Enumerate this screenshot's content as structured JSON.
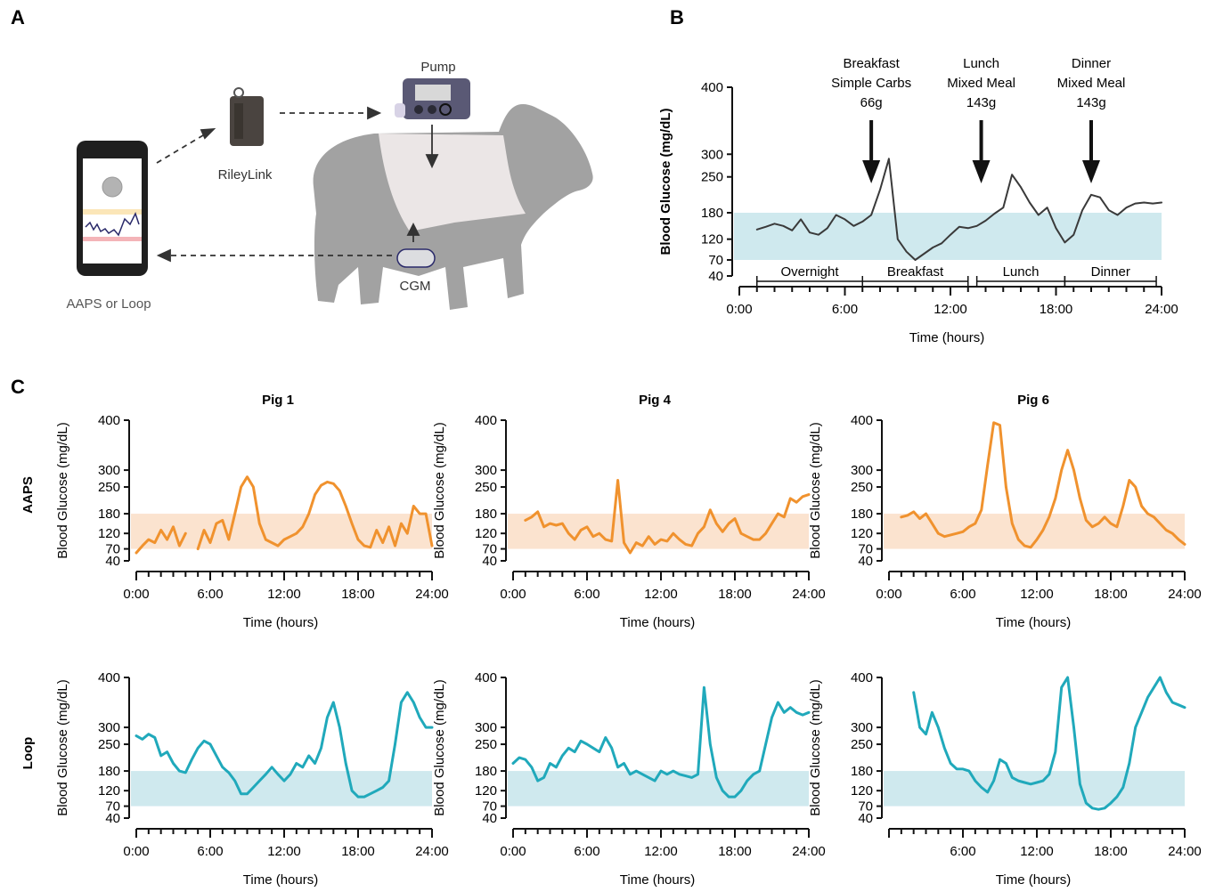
{
  "panels": {
    "a": {
      "letter": "A",
      "pump_label": "Pump",
      "rileylink_label": "RileyLink",
      "cgm_label": "CGM",
      "phone_label": "AAPS or Loop"
    },
    "b": {
      "letter": "B",
      "ylabel": "Blood Glucose (mg/dL)",
      "xlabel": "Time (hours)",
      "meals": [
        {
          "lines": [
            "Breakfast",
            "Simple Carbs",
            "66g"
          ],
          "time_h": 7.5
        },
        {
          "lines": [
            "Lunch",
            "Mixed Meal",
            "143g"
          ],
          "time_h": 13.75
        },
        {
          "lines": [
            "Dinner",
            "Mixed Meal",
            "143g"
          ],
          "time_h": 20
        }
      ],
      "periods": [
        {
          "label": "Overnight",
          "start_h": 1,
          "end_h": 7
        },
        {
          "label": "Breakfast",
          "start_h": 7,
          "end_h": 13
        },
        {
          "label": "Lunch",
          "start_h": 13.5,
          "end_h": 18.5
        },
        {
          "label": "Dinner",
          "start_h": 18.5,
          "end_h": 23.7
        }
      ]
    },
    "c": {
      "letter": "C",
      "col_titles": [
        "Pig 1",
        "Pig 4",
        "Pig 6"
      ],
      "row_titles": [
        "AAPS",
        "Loop"
      ],
      "ylabel": "Blood Glucose (mg/dL)",
      "xlabel": "Time (hours)"
    }
  },
  "colors": {
    "aaps_line": "#f0922e",
    "aaps_band": "#fbe3cf",
    "loop_line": "#20a9bb",
    "loop_band": "#cfe9ee",
    "b_line": "#3a3a3a",
    "b_band": "#cfe9ee"
  },
  "chart_data": [
    {
      "id": "B",
      "type": "line",
      "xlabel": "Time (hours)",
      "ylabel": "Blood Glucose (mg/dL)",
      "xlim": [
        0,
        24
      ],
      "ylim": [
        40,
        400
      ],
      "xticks": [
        "0:00",
        "6:00",
        "12:00",
        "18:00",
        "24:00"
      ],
      "yticks": [
        40,
        70,
        120,
        180,
        250,
        300,
        400
      ],
      "target_range": [
        70,
        180
      ],
      "x": [
        1,
        1.5,
        2,
        2.5,
        3,
        3.5,
        4,
        4.5,
        5,
        5.5,
        6,
        6.5,
        7,
        7.5,
        8,
        8.5,
        9,
        9.5,
        10,
        10.5,
        11,
        11.5,
        12,
        12.5,
        13,
        13.5,
        14,
        14.5,
        15,
        15.5,
        16,
        16.5,
        17,
        17.5,
        18,
        18.5,
        19,
        19.5,
        20,
        20.5,
        21,
        21.5,
        22,
        22.5,
        23,
        23.5,
        24
      ],
      "y": [
        142,
        148,
        155,
        150,
        140,
        165,
        135,
        130,
        145,
        175,
        165,
        150,
        160,
        175,
        225,
        290,
        120,
        90,
        70,
        85,
        100,
        110,
        130,
        148,
        145,
        150,
        162,
        178,
        190,
        255,
        230,
        200,
        175,
        190,
        145,
        112,
        130,
        185,
        215,
        210,
        185,
        175,
        190,
        198,
        200,
        198,
        200
      ]
    },
    {
      "id": "C-AAPS-Pig1",
      "type": "line",
      "xlim": [
        0,
        24
      ],
      "ylim": [
        40,
        400
      ],
      "target_range": [
        70,
        180
      ],
      "x": [
        0,
        0.5,
        1,
        1.5,
        2,
        2.5,
        3,
        3.5,
        4,
        4.5,
        5,
        5.5,
        6,
        6.5,
        7,
        7.5,
        8,
        8.5,
        9,
        9.5,
        10,
        10.5,
        11,
        11.5,
        12,
        12.5,
        13,
        13.5,
        14,
        14.5,
        15,
        15.5,
        16,
        16.5,
        17,
        17.5,
        18,
        18.5,
        19,
        19.5,
        20,
        20.5,
        21,
        21.5,
        22,
        22.5,
        23,
        23.5,
        24
      ],
      "y": [
        60,
        80,
        100,
        90,
        130,
        100,
        140,
        80,
        120,
        null,
        70,
        130,
        90,
        150,
        160,
        100,
        180,
        250,
        280,
        250,
        150,
        100,
        90,
        80,
        100,
        110,
        120,
        140,
        180,
        230,
        255,
        265,
        260,
        240,
        200,
        150,
        100,
        80,
        75,
        130,
        90,
        140,
        80,
        150,
        120,
        200,
        180,
        180,
        80
      ]
    },
    {
      "id": "C-AAPS-Pig4",
      "type": "line",
      "xlim": [
        0,
        24
      ],
      "ylim": [
        40,
        400
      ],
      "target_range": [
        70,
        180
      ],
      "x": [
        1,
        1.5,
        2,
        2.5,
        3,
        3.5,
        4,
        4.5,
        5,
        5.5,
        6,
        6.5,
        7,
        7.5,
        8,
        8.5,
        9,
        9.5,
        10,
        10.5,
        11,
        11.5,
        12,
        12.5,
        13,
        13.5,
        14,
        14.5,
        15,
        15.5,
        16,
        16.5,
        17,
        17.5,
        18,
        18.5,
        19,
        19.5,
        20,
        20.5,
        21,
        21.5,
        22,
        22.5,
        23,
        23.5,
        24
      ],
      "y": [
        160,
        170,
        185,
        140,
        150,
        145,
        150,
        120,
        100,
        130,
        140,
        110,
        120,
        100,
        95,
        270,
        90,
        60,
        90,
        80,
        110,
        85,
        100,
        95,
        120,
        100,
        85,
        80,
        120,
        140,
        190,
        150,
        125,
        150,
        165,
        120,
        110,
        100,
        100,
        120,
        150,
        180,
        170,
        220,
        210,
        225,
        230
      ]
    },
    {
      "id": "C-AAPS-Pig6",
      "type": "line",
      "xlim": [
        0,
        24
      ],
      "ylim": [
        40,
        400
      ],
      "target_range": [
        70,
        180
      ],
      "x": [
        1,
        1.5,
        2,
        2.5,
        3,
        3.5,
        4,
        4.5,
        5,
        5.5,
        6,
        6.5,
        7,
        7.5,
        8,
        8.5,
        9,
        9.5,
        10,
        10.5,
        11,
        11.5,
        12,
        12.5,
        13,
        13.5,
        14,
        14.5,
        15,
        15.5,
        16,
        16.5,
        17,
        17.5,
        18,
        18.5,
        19,
        19.5,
        20,
        20.5,
        21,
        21.5,
        22,
        22.5,
        23,
        23.5,
        24
      ],
      "y": [
        170,
        175,
        185,
        165,
        180,
        150,
        120,
        110,
        115,
        120,
        125,
        140,
        150,
        190,
        310,
        395,
        390,
        250,
        150,
        100,
        80,
        75,
        100,
        130,
        170,
        220,
        300,
        340,
        300,
        220,
        160,
        140,
        150,
        170,
        150,
        140,
        200,
        270,
        250,
        200,
        180,
        170,
        150,
        130,
        120,
        100,
        85
      ]
    },
    {
      "id": "C-Loop-Pig1",
      "type": "line",
      "xlim": [
        0,
        24
      ],
      "ylim": [
        40,
        400
      ],
      "target_range": [
        70,
        180
      ],
      "x": [
        0,
        0.5,
        1,
        1.5,
        2,
        2.5,
        3,
        3.5,
        4,
        4.5,
        5,
        5.5,
        6,
        6.5,
        7,
        7.5,
        8,
        8.5,
        9,
        9.5,
        10,
        10.5,
        11,
        11.5,
        12,
        12.5,
        13,
        13.5,
        14,
        14.5,
        15,
        15.5,
        16,
        16.5,
        17,
        17.5,
        18,
        18.5,
        19,
        19.5,
        20,
        20.5,
        21,
        21.5,
        22,
        22.5,
        23,
        23.5,
        24
      ],
      "y": [
        275,
        265,
        280,
        270,
        220,
        230,
        200,
        180,
        175,
        210,
        240,
        260,
        250,
        220,
        190,
        175,
        150,
        110,
        110,
        130,
        150,
        170,
        190,
        170,
        150,
        170,
        200,
        190,
        220,
        200,
        240,
        320,
        350,
        300,
        200,
        120,
        100,
        100,
        110,
        120,
        130,
        150,
        250,
        350,
        370,
        350,
        320,
        300,
        300
      ]
    },
    {
      "id": "C-Loop-Pig4",
      "type": "line",
      "xlim": [
        0,
        24
      ],
      "ylim": [
        40,
        400
      ],
      "target_range": [
        70,
        180
      ],
      "x": [
        0,
        0.5,
        1,
        1.5,
        2,
        2.5,
        3,
        3.5,
        4,
        4.5,
        5,
        5.5,
        6,
        6.5,
        7,
        7.5,
        8,
        8.5,
        9,
        9.5,
        10,
        10.5,
        11,
        11.5,
        12,
        12.5,
        13,
        13.5,
        14,
        14.5,
        15,
        15.5,
        16,
        16.5,
        17,
        17.5,
        18,
        18.5,
        19,
        19.5,
        20,
        20.5,
        21,
        21.5,
        22,
        22.5,
        23,
        23.5,
        24
      ],
      "y": [
        200,
        215,
        210,
        190,
        150,
        160,
        200,
        190,
        220,
        240,
        230,
        260,
        250,
        240,
        230,
        270,
        240,
        190,
        200,
        170,
        180,
        170,
        160,
        150,
        180,
        170,
        180,
        170,
        165,
        160,
        170,
        380,
        250,
        160,
        120,
        100,
        100,
        120,
        150,
        170,
        180,
        250,
        320,
        350,
        330,
        340,
        330,
        325,
        330
      ]
    },
    {
      "id": "C-Loop-Pig6",
      "type": "line",
      "xlim": [
        0,
        24
      ],
      "ylim": [
        40,
        400
      ],
      "target_range": [
        70,
        180
      ],
      "x": [
        2,
        2.5,
        3,
        3.5,
        4,
        4.5,
        5,
        5.5,
        6,
        6.5,
        7,
        7.5,
        8,
        8.5,
        9,
        9.5,
        10,
        10.5,
        11,
        11.5,
        12,
        12.5,
        13,
        13.5,
        14,
        14.5,
        15,
        15.5,
        16,
        16.5,
        17,
        17.5,
        18,
        18.5,
        19,
        19.5,
        20,
        20.5,
        21,
        21.5,
        22,
        22.5,
        23,
        23.5,
        24
      ],
      "y": [
        370,
        300,
        280,
        330,
        300,
        240,
        200,
        185,
        185,
        180,
        150,
        130,
        115,
        150,
        210,
        200,
        160,
        150,
        145,
        140,
        145,
        150,
        170,
        230,
        380,
        400,
        300,
        140,
        80,
        65,
        62,
        65,
        80,
        100,
        130,
        200,
        300,
        330,
        360,
        380,
        400,
        370,
        350,
        345,
        340
      ]
    }
  ]
}
